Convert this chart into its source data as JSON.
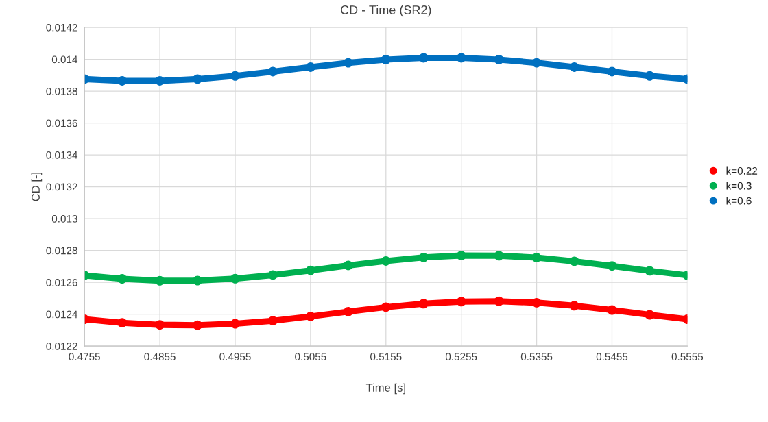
{
  "chart_data": {
    "type": "line",
    "title": "CD - Time (SR2)",
    "xlabel": "Time [s]",
    "ylabel": "CD [-]",
    "x": [
      0.4755,
      0.4805,
      0.4855,
      0.4905,
      0.4955,
      0.5005,
      0.5055,
      0.5105,
      0.5155,
      0.5205,
      0.5255,
      0.5305,
      0.5355,
      0.5405,
      0.5455,
      0.5505,
      0.5555
    ],
    "series": [
      {
        "name": "k=0.22",
        "color": "#ff0000",
        "values": [
          0.012368,
          0.012346,
          0.012333,
          0.012331,
          0.01234,
          0.012359,
          0.012386,
          0.012416,
          0.012444,
          0.012466,
          0.012479,
          0.012481,
          0.012472,
          0.012453,
          0.012426,
          0.012396,
          0.012368
        ]
      },
      {
        "name": "k=0.3",
        "color": "#00b050",
        "values": [
          0.012644,
          0.012622,
          0.01261,
          0.012611,
          0.012623,
          0.012646,
          0.012675,
          0.012706,
          0.012734,
          0.012756,
          0.012768,
          0.012767,
          0.012755,
          0.012732,
          0.012703,
          0.012672,
          0.012644
        ]
      },
      {
        "name": "k=0.6",
        "color": "#0070c0",
        "values": [
          0.013876,
          0.013865,
          0.013865,
          0.013876,
          0.013896,
          0.013923,
          0.013951,
          0.013978,
          0.013998,
          0.014009,
          0.014009,
          0.013998,
          0.013978,
          0.013951,
          0.013923,
          0.013896,
          0.013876
        ]
      }
    ],
    "xlim": [
      0.4755,
      0.5555
    ],
    "xticks": [
      0.4755,
      0.4855,
      0.4955,
      0.5055,
      0.5155,
      0.5255,
      0.5355,
      0.5455,
      0.5555
    ],
    "ylim": [
      0.0122,
      0.0142
    ],
    "yticks": [
      0.0122,
      0.0124,
      0.0126,
      0.0128,
      0.013,
      0.0132,
      0.0134,
      0.0136,
      0.0138,
      0.014,
      0.0142
    ],
    "grid": true,
    "legend": "right",
    "marker": "circle",
    "line_style": "solid"
  }
}
